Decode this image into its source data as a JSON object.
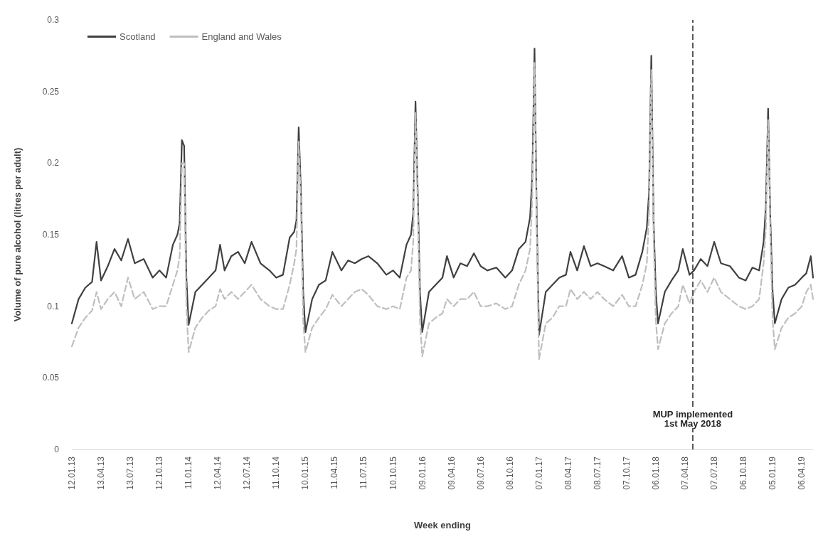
{
  "chart_data": {
    "type": "line",
    "xlabel": "Week ending",
    "ylabel": "Volume of pure alcohol (litres per adult)",
    "x": [
      "2013-01-12",
      "2013-02-02",
      "2013-02-23",
      "2013-03-16",
      "2013-03-30",
      "2013-04-13",
      "2013-05-04",
      "2013-05-25",
      "2013-06-15",
      "2013-07-06",
      "2013-07-27",
      "2013-08-24",
      "2013-09-21",
      "2013-10-12",
      "2013-11-02",
      "2013-11-23",
      "2013-12-07",
      "2013-12-14",
      "2013-12-21",
      "2013-12-28",
      "2014-01-04",
      "2014-01-11",
      "2014-02-01",
      "2014-02-22",
      "2014-03-15",
      "2014-04-05",
      "2014-04-19",
      "2014-05-03",
      "2014-05-24",
      "2014-06-14",
      "2014-07-05",
      "2014-07-26",
      "2014-08-23",
      "2014-09-20",
      "2014-10-11",
      "2014-11-01",
      "2014-11-22",
      "2014-12-06",
      "2014-12-13",
      "2014-12-20",
      "2014-12-27",
      "2015-01-03",
      "2015-01-10",
      "2015-01-31",
      "2015-02-21",
      "2015-03-14",
      "2015-04-04",
      "2015-05-02",
      "2015-05-23",
      "2015-06-13",
      "2015-07-04",
      "2015-07-25",
      "2015-08-22",
      "2015-09-19",
      "2015-10-10",
      "2015-10-31",
      "2015-11-21",
      "2015-12-05",
      "2015-12-12",
      "2015-12-19",
      "2015-12-26",
      "2016-01-02",
      "2016-01-09",
      "2016-01-30",
      "2016-02-20",
      "2016-03-12",
      "2016-03-26",
      "2016-04-16",
      "2016-05-07",
      "2016-05-28",
      "2016-06-18",
      "2016-07-09",
      "2016-07-30",
      "2016-08-27",
      "2016-09-24",
      "2016-10-15",
      "2016-11-05",
      "2016-11-26",
      "2016-12-10",
      "2016-12-17",
      "2016-12-24",
      "2016-12-31",
      "2017-01-07",
      "2017-01-28",
      "2017-02-18",
      "2017-03-11",
      "2017-04-01",
      "2017-04-15",
      "2017-05-06",
      "2017-05-27",
      "2017-06-17",
      "2017-07-08",
      "2017-07-29",
      "2017-08-26",
      "2017-09-23",
      "2017-10-14",
      "2017-11-04",
      "2017-11-25",
      "2017-12-09",
      "2017-12-16",
      "2017-12-23",
      "2017-12-30",
      "2018-01-06",
      "2018-01-13",
      "2018-02-03",
      "2018-02-24",
      "2018-03-17",
      "2018-03-31",
      "2018-04-21",
      "2018-05-05",
      "2018-05-26",
      "2018-06-16",
      "2018-07-07",
      "2018-07-28",
      "2018-08-25",
      "2018-09-22",
      "2018-10-13",
      "2018-11-03",
      "2018-11-24",
      "2018-12-08",
      "2018-12-15",
      "2018-12-22",
      "2018-12-29",
      "2019-01-05",
      "2019-01-12",
      "2019-02-02",
      "2019-02-23",
      "2019-03-16",
      "2019-04-06",
      "2019-04-20",
      "2019-05-04",
      "2019-05-11"
    ],
    "series": [
      {
        "name": "Scotland",
        "color": "#404040",
        "line_style": "solid",
        "values": [
          0.088,
          0.105,
          0.113,
          0.117,
          0.145,
          0.118,
          0.128,
          0.14,
          0.132,
          0.147,
          0.13,
          0.133,
          0.12,
          0.125,
          0.12,
          0.143,
          0.15,
          0.158,
          0.216,
          0.212,
          0.12,
          0.087,
          0.11,
          0.115,
          0.12,
          0.125,
          0.143,
          0.125,
          0.135,
          0.138,
          0.13,
          0.145,
          0.13,
          0.125,
          0.12,
          0.122,
          0.148,
          0.152,
          0.16,
          0.225,
          0.18,
          0.11,
          0.082,
          0.105,
          0.115,
          0.118,
          0.138,
          0.125,
          0.132,
          0.13,
          0.133,
          0.135,
          0.13,
          0.122,
          0.125,
          0.12,
          0.143,
          0.15,
          0.165,
          0.243,
          0.18,
          0.11,
          0.082,
          0.11,
          0.115,
          0.12,
          0.135,
          0.12,
          0.13,
          0.128,
          0.137,
          0.128,
          0.125,
          0.127,
          0.12,
          0.125,
          0.14,
          0.145,
          0.162,
          0.19,
          0.28,
          0.16,
          0.08,
          0.11,
          0.115,
          0.12,
          0.122,
          0.138,
          0.125,
          0.142,
          0.128,
          0.13,
          0.128,
          0.125,
          0.135,
          0.12,
          0.122,
          0.138,
          0.155,
          0.18,
          0.275,
          0.16,
          0.11,
          0.088,
          0.11,
          0.118,
          0.125,
          0.14,
          0.122,
          0.125,
          0.133,
          0.128,
          0.145,
          0.13,
          0.128,
          0.12,
          0.118,
          0.127,
          0.125,
          0.145,
          0.17,
          0.238,
          0.16,
          0.11,
          0.088,
          0.105,
          0.113,
          0.115,
          0.12,
          0.123,
          0.135,
          0.12
        ]
      },
      {
        "name": "England and Wales",
        "color": "#bfbfbf",
        "line_style": "dashed",
        "values": [
          0.072,
          0.085,
          0.092,
          0.097,
          0.11,
          0.098,
          0.105,
          0.11,
          0.1,
          0.12,
          0.105,
          0.11,
          0.098,
          0.1,
          0.1,
          0.115,
          0.125,
          0.135,
          0.2,
          0.2,
          0.1,
          0.068,
          0.085,
          0.092,
          0.097,
          0.1,
          0.112,
          0.105,
          0.11,
          0.105,
          0.11,
          0.115,
          0.105,
          0.1,
          0.098,
          0.098,
          0.115,
          0.13,
          0.14,
          0.215,
          0.17,
          0.09,
          0.068,
          0.085,
          0.092,
          0.098,
          0.108,
          0.1,
          0.105,
          0.11,
          0.112,
          0.108,
          0.1,
          0.098,
          0.1,
          0.098,
          0.12,
          0.125,
          0.145,
          0.235,
          0.17,
          0.09,
          0.065,
          0.088,
          0.092,
          0.095,
          0.105,
          0.1,
          0.105,
          0.105,
          0.11,
          0.1,
          0.1,
          0.102,
          0.098,
          0.1,
          0.115,
          0.125,
          0.14,
          0.175,
          0.27,
          0.15,
          0.063,
          0.088,
          0.092,
          0.1,
          0.1,
          0.112,
          0.105,
          0.11,
          0.105,
          0.11,
          0.105,
          0.1,
          0.108,
          0.1,
          0.1,
          0.115,
          0.13,
          0.165,
          0.265,
          0.15,
          0.09,
          0.07,
          0.088,
          0.095,
          0.1,
          0.115,
          0.102,
          0.11,
          0.118,
          0.11,
          0.12,
          0.11,
          0.105,
          0.1,
          0.098,
          0.1,
          0.105,
          0.13,
          0.155,
          0.23,
          0.15,
          0.09,
          0.07,
          0.085,
          0.092,
          0.095,
          0.1,
          0.11,
          0.115,
          0.105
        ]
      }
    ],
    "xlim": [
      "2013-01-12",
      "2019-05-11"
    ],
    "xticks": [
      {
        "value": "2013-01-12",
        "label": "12.01.13"
      },
      {
        "value": "2013-04-13",
        "label": "13.04.13"
      },
      {
        "value": "2013-07-13",
        "label": "13.07.13"
      },
      {
        "value": "2013-10-12",
        "label": "12.10.13"
      },
      {
        "value": "2014-01-11",
        "label": "11.01.14"
      },
      {
        "value": "2014-04-12",
        "label": "12.04.14"
      },
      {
        "value": "2014-07-12",
        "label": "12.07.14"
      },
      {
        "value": "2014-10-11",
        "label": "11.10.14"
      },
      {
        "value": "2015-01-10",
        "label": "10.01.15"
      },
      {
        "value": "2015-04-11",
        "label": "11.04.15"
      },
      {
        "value": "2015-07-11",
        "label": "11.07.15"
      },
      {
        "value": "2015-10-10",
        "label": "10.10.15"
      },
      {
        "value": "2016-01-09",
        "label": "09.01.16"
      },
      {
        "value": "2016-04-09",
        "label": "09.04.16"
      },
      {
        "value": "2016-07-09",
        "label": "09.07.16"
      },
      {
        "value": "2016-10-08",
        "label": "08.10.16"
      },
      {
        "value": "2017-01-07",
        "label": "07.01.17"
      },
      {
        "value": "2017-04-08",
        "label": "08.04.17"
      },
      {
        "value": "2017-07-08",
        "label": "08.07.17"
      },
      {
        "value": "2017-10-07",
        "label": "07.10.17"
      },
      {
        "value": "2018-01-06",
        "label": "06.01.18"
      },
      {
        "value": "2018-04-07",
        "label": "07.04.18"
      },
      {
        "value": "2018-07-07",
        "label": "07.07.18"
      },
      {
        "value": "2018-10-06",
        "label": "06.10.18"
      },
      {
        "value": "2019-01-05",
        "label": "05.01.19"
      },
      {
        "value": "2019-04-06",
        "label": "06.04.19"
      }
    ],
    "ylim": [
      0,
      0.3
    ],
    "yticks": [
      0,
      0.05,
      0.1,
      0.15,
      0.2,
      0.25,
      0.3
    ],
    "ref_lines": [
      {
        "axis": "x",
        "value": "2018-05-01",
        "label": "MUP implemented\n1st May 2018",
        "color": "#595959",
        "line_style": "dashed"
      }
    ],
    "legend": "top left",
    "grid": false,
    "marker": "none"
  }
}
